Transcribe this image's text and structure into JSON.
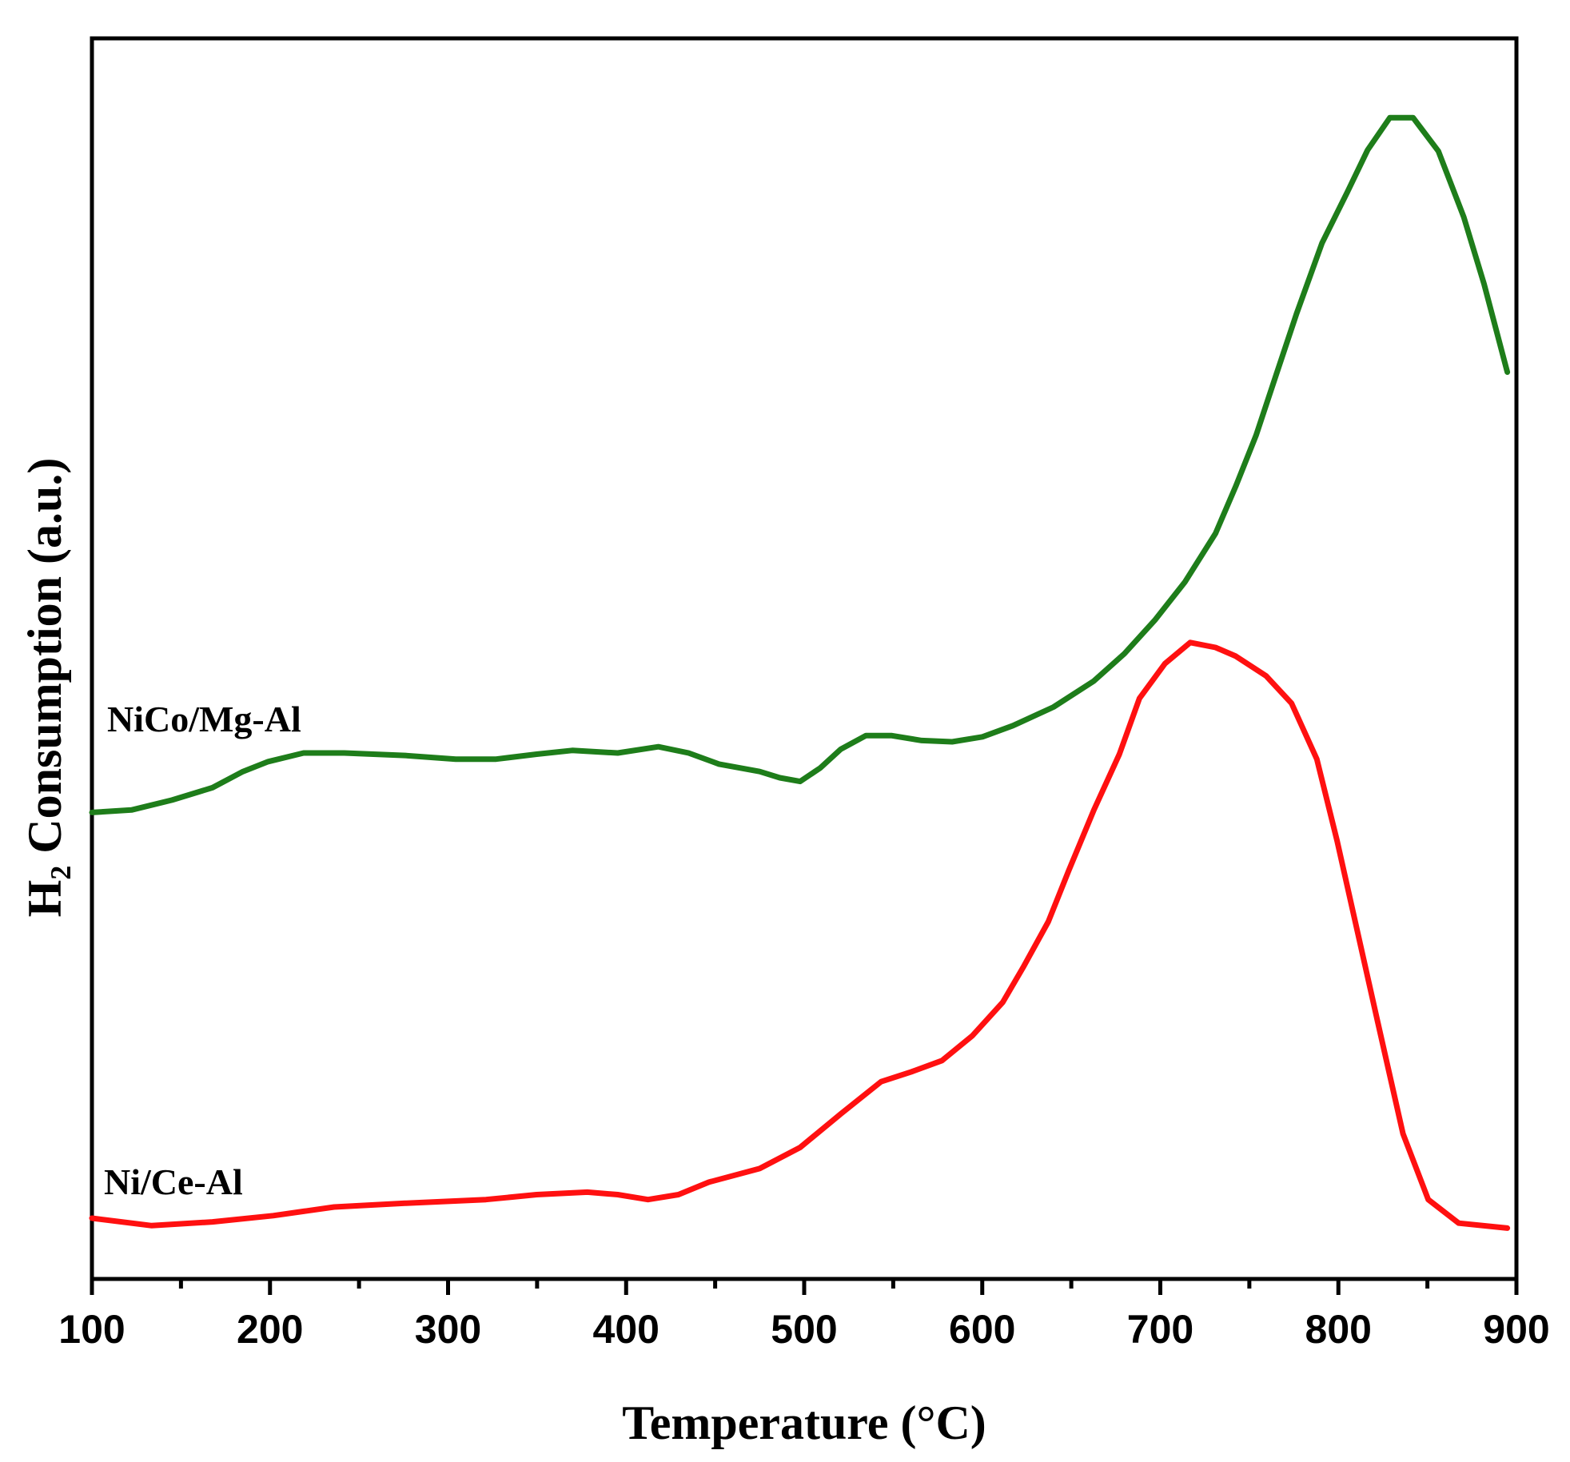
{
  "chart_data": {
    "type": "line",
    "x_label": "Temperature (°C)",
    "y_label": "H₂ Consumption (a.u.)",
    "xlim": [
      100,
      900
    ],
    "xticks": [
      100,
      200,
      300,
      400,
      500,
      600,
      700,
      800,
      900
    ],
    "xminorticks": [
      150,
      250,
      350,
      450,
      550,
      650,
      750,
      850
    ],
    "ylim": [
      0,
      100
    ],
    "annotations": [
      "NiCo/Mg-Al",
      "Ni/Ce-Al"
    ],
    "series": [
      {
        "name": "NiCo/Mg-Al",
        "color": "#1e7d1a",
        "x": [
          100,
          122.2,
          145,
          167.7,
          184.8,
          199,
          218.9,
          241.7,
          275.8,
          304.3,
          327,
          349.8,
          369.7,
          395.3,
          418.1,
          435.1,
          452.2,
          475,
          486.3,
          497.7,
          509.1,
          520.5,
          534.7,
          548.9,
          566,
          583.1,
          600.1,
          617.2,
          640,
          662.7,
          679.8,
          696.9,
          713.9,
          731,
          742.4,
          753.8,
          765.1,
          776.5,
          790.8,
          805,
          816.4,
          828.9,
          842,
          856.2,
          870.4,
          881.8,
          894.9
        ],
        "values": [
          37.6,
          37.8,
          38.6,
          39.6,
          40.9,
          41.7,
          42.4,
          42.4,
          42.2,
          41.9,
          41.9,
          42.3,
          42.6,
          42.4,
          42.9,
          42.4,
          41.5,
          40.9,
          40.4,
          40.1,
          41.2,
          42.7,
          43.8,
          43.8,
          43.4,
          43.3,
          43.7,
          44.6,
          46.1,
          48.2,
          50.4,
          53.1,
          56.2,
          60.1,
          63.9,
          68.0,
          72.9,
          77.8,
          83.5,
          87.6,
          91.0,
          93.6,
          93.6,
          90.9,
          85.6,
          80.2,
          73.1
        ]
      },
      {
        "name": "Ni/Ce-Al",
        "color": "#ff1010",
        "x": [
          100,
          133.6,
          167.7,
          201.8,
          236,
          275.8,
          321.3,
          349.8,
          378.2,
          395.3,
          412.3,
          429.4,
          446.5,
          475,
          497.7,
          520.5,
          543.2,
          560.3,
          577.4,
          594.4,
          611.5,
          622.9,
          637.1,
          648.5,
          662.7,
          677,
          688.3,
          702.6,
          716.8,
          731,
          742.4,
          759.5,
          773.7,
          787.9,
          799.3,
          810.7,
          822.1,
          836.3,
          850.5,
          867.6,
          894.9
        ],
        "values": [
          4.9,
          4.3,
          4.6,
          5.1,
          5.8,
          6.1,
          6.4,
          6.8,
          7.0,
          6.8,
          6.4,
          6.8,
          7.8,
          8.9,
          10.6,
          13.3,
          15.9,
          16.7,
          17.6,
          19.6,
          22.3,
          25.1,
          28.8,
          32.9,
          37.8,
          42.3,
          46.8,
          49.6,
          51.3,
          50.9,
          50.2,
          48.6,
          46.4,
          41.9,
          35.3,
          28.0,
          20.7,
          11.7,
          6.4,
          4.5,
          4.1
        ]
      }
    ]
  }
}
